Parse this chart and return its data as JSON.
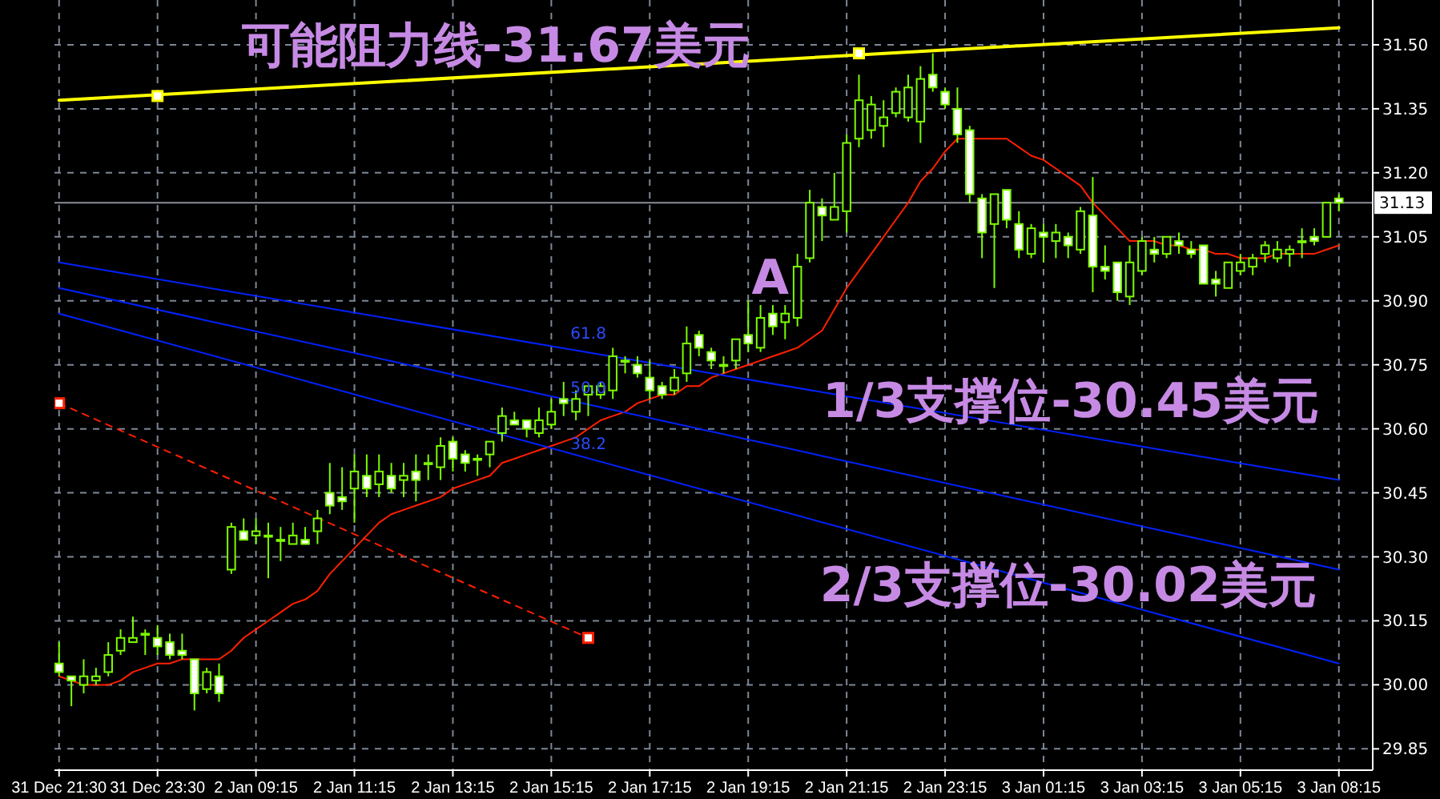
{
  "chart_data": {
    "type": "candlestick",
    "color": "#7cfc00",
    "grid": true,
    "categories": [
      "31 Dec 21:30",
      null,
      null,
      null,
      null,
      null,
      null,
      null,
      "31 Dec 23:30",
      null,
      null,
      null,
      null,
      null,
      null,
      null,
      "2 Jan 09:15",
      null,
      null,
      null,
      null,
      null,
      null,
      null,
      "2 Jan 11:15",
      null,
      null,
      null,
      null,
      null,
      null,
      null,
      "2 Jan 13:15",
      null,
      null,
      null,
      null,
      null,
      null,
      null,
      "2 Jan 15:15",
      null,
      null,
      null,
      null,
      null,
      null,
      null,
      "2 Jan 17:15",
      null,
      null,
      null,
      null,
      null,
      null,
      null,
      "2 Jan 19:15",
      null,
      null,
      null,
      null,
      null,
      null,
      null,
      "2 Jan 21:15",
      null,
      null,
      null,
      null,
      null,
      null,
      null,
      "2 Jan 23:15",
      null,
      null,
      null,
      null,
      null,
      null,
      null,
      "3 Jan 01:15",
      null,
      null,
      null,
      null,
      null,
      null,
      null,
      "3 Jan 03:15",
      null,
      null,
      null,
      null,
      null,
      null,
      null,
      "3 Jan 05:15",
      null,
      null,
      null,
      null,
      null,
      null,
      null,
      "3 Jan 08:15"
    ],
    "ylim": [
      29.8,
      31.605
    ],
    "yticks": [
      29.85,
      {
        "value": 30,
        "label": "30.00"
      },
      30.15,
      {
        "value": 30.3,
        "label": "30.30"
      },
      30.45,
      {
        "value": 30.6,
        "label": "30.60"
      },
      30.75,
      {
        "value": 30.9,
        "label": "30.90"
      },
      31.05,
      {
        "value": 31.2,
        "label": "31.20"
      },
      31.35,
      {
        "value": 31.5,
        "label": "31.50"
      }
    ],
    "ohlc": [
      [
        30.05,
        30.1,
        30.02,
        30.03
      ],
      [
        30.02,
        30.02,
        29.95,
        30.01
      ],
      [
        30.0,
        30.06,
        29.98,
        30.02
      ],
      [
        30.01,
        30.04,
        30.0,
        30.02
      ],
      [
        30.03,
        30.1,
        30.02,
        30.07
      ],
      [
        30.08,
        30.13,
        30.07,
        30.11
      ],
      [
        30.1,
        30.16,
        30.1,
        30.11
      ],
      [
        30.12,
        30.13,
        30.07,
        30.12
      ],
      [
        30.11,
        30.14,
        30.07,
        30.09
      ],
      [
        30.1,
        30.12,
        30.06,
        30.07
      ],
      [
        30.08,
        30.12,
        30.06,
        30.07
      ],
      [
        30.06,
        30.06,
        29.94,
        29.98
      ],
      [
        29.99,
        30.04,
        29.98,
        30.03
      ],
      [
        30.02,
        30.05,
        29.96,
        29.98
      ],
      [
        30.27,
        30.38,
        30.26,
        30.37
      ],
      [
        30.36,
        30.39,
        30.34,
        30.34
      ],
      [
        30.35,
        30.39,
        30.33,
        30.36
      ],
      [
        30.35,
        30.38,
        30.25,
        30.35
      ],
      [
        30.34,
        30.37,
        30.29,
        30.34
      ],
      [
        30.33,
        30.38,
        30.33,
        30.35
      ],
      [
        30.34,
        30.37,
        30.33,
        30.33
      ],
      [
        30.36,
        30.41,
        30.33,
        30.39
      ],
      [
        30.45,
        30.52,
        30.4,
        30.42
      ],
      [
        30.44,
        30.51,
        30.41,
        30.43
      ],
      [
        30.46,
        30.54,
        30.38,
        30.5
      ],
      [
        30.49,
        30.54,
        30.44,
        30.46
      ],
      [
        30.47,
        30.54,
        30.44,
        30.5
      ],
      [
        30.49,
        30.52,
        30.45,
        30.46
      ],
      [
        30.48,
        30.52,
        30.44,
        30.49
      ],
      [
        30.5,
        30.54,
        30.43,
        30.48
      ],
      [
        30.52,
        30.54,
        30.48,
        30.52
      ],
      [
        30.51,
        30.58,
        30.48,
        30.56
      ],
      [
        30.57,
        30.58,
        30.5,
        30.53
      ],
      [
        30.54,
        30.55,
        30.5,
        30.52
      ],
      [
        30.53,
        30.54,
        30.49,
        30.53
      ],
      [
        30.54,
        30.57,
        30.51,
        30.57
      ],
      [
        30.59,
        30.65,
        30.57,
        30.63
      ],
      [
        30.62,
        30.64,
        30.61,
        30.61
      ],
      [
        30.62,
        30.62,
        30.58,
        30.6
      ],
      [
        30.59,
        30.65,
        30.58,
        30.62
      ],
      [
        30.61,
        30.67,
        30.6,
        30.64
      ],
      [
        30.67,
        30.71,
        30.63,
        30.66
      ],
      [
        30.64,
        30.69,
        30.62,
        30.67
      ],
      [
        30.68,
        30.7,
        30.63,
        30.7
      ],
      [
        30.68,
        30.71,
        30.67,
        30.7
      ],
      [
        30.69,
        30.79,
        30.67,
        30.77
      ],
      [
        30.76,
        30.77,
        30.73,
        30.76
      ],
      [
        30.75,
        30.77,
        30.72,
        30.73
      ],
      [
        30.72,
        30.76,
        30.67,
        30.69
      ],
      [
        30.7,
        30.71,
        30.67,
        30.68
      ],
      [
        30.69,
        30.74,
        30.68,
        30.72
      ],
      [
        30.73,
        30.84,
        30.71,
        30.8
      ],
      [
        30.82,
        30.83,
        30.77,
        30.79
      ],
      [
        30.78,
        30.79,
        30.74,
        30.76
      ],
      [
        30.75,
        30.77,
        30.73,
        30.75
      ],
      [
        30.76,
        30.81,
        30.74,
        30.81
      ],
      [
        30.82,
        30.9,
        30.78,
        30.8
      ],
      [
        30.79,
        30.89,
        30.78,
        30.86
      ],
      [
        30.87,
        30.89,
        30.82,
        30.84
      ],
      [
        30.85,
        30.89,
        30.81,
        30.87
      ],
      [
        30.86,
        31.01,
        30.84,
        30.98
      ],
      [
        31.0,
        31.16,
        30.99,
        31.13
      ],
      [
        31.12,
        31.14,
        31.04,
        31.1
      ],
      [
        31.09,
        31.2,
        31.09,
        31.12
      ],
      [
        31.11,
        31.29,
        31.06,
        31.27
      ],
      [
        31.28,
        31.43,
        31.26,
        31.37
      ],
      [
        31.3,
        31.38,
        31.28,
        31.36
      ],
      [
        31.31,
        31.37,
        31.26,
        31.33
      ],
      [
        31.34,
        31.4,
        31.33,
        31.39
      ],
      [
        31.33,
        31.43,
        31.32,
        31.4
      ],
      [
        31.32,
        31.45,
        31.27,
        31.42
      ],
      [
        31.43,
        31.48,
        31.39,
        31.4
      ],
      [
        31.39,
        31.4,
        31.35,
        31.36
      ],
      [
        31.35,
        31.4,
        31.27,
        31.29
      ],
      [
        31.3,
        31.31,
        31.13,
        31.15
      ],
      [
        31.14,
        31.15,
        31.0,
        31.06
      ],
      [
        31.08,
        31.15,
        30.93,
        31.15
      ],
      [
        31.16,
        31.16,
        31.07,
        31.09
      ],
      [
        31.08,
        31.11,
        31.0,
        31.02
      ],
      [
        31.01,
        31.08,
        31.0,
        31.07
      ],
      [
        31.06,
        31.08,
        30.99,
        31.05
      ],
      [
        31.04,
        31.08,
        31.0,
        31.06
      ],
      [
        31.05,
        31.06,
        31.0,
        31.03
      ],
      [
        31.02,
        31.12,
        31.01,
        31.11
      ],
      [
        31.1,
        31.19,
        30.92,
        30.98
      ],
      [
        30.98,
        31.03,
        30.95,
        30.97
      ],
      [
        30.99,
        30.99,
        30.9,
        30.92
      ],
      [
        30.91,
        31.03,
        30.89,
        30.99
      ],
      [
        30.97,
        31.05,
        30.96,
        31.04
      ],
      [
        31.02,
        31.05,
        30.99,
        31.01
      ],
      [
        31.01,
        31.05,
        31.0,
        31.05
      ],
      [
        31.04,
        31.06,
        31.01,
        31.03
      ],
      [
        31.02,
        31.04,
        31.0,
        31.01
      ],
      [
        31.03,
        31.03,
        30.94,
        30.94
      ],
      [
        30.95,
        30.97,
        30.91,
        30.94
      ],
      [
        30.93,
        30.99,
        30.93,
        30.99
      ],
      [
        30.97,
        31.01,
        30.96,
        30.99
      ],
      [
        30.98,
        31.01,
        30.96,
        31.0
      ],
      [
        31.01,
        31.04,
        30.99,
        31.03
      ],
      [
        31.0,
        31.04,
        30.99,
        31.02
      ],
      [
        31.01,
        31.03,
        30.98,
        31.02
      ],
      [
        31.04,
        31.07,
        31.0,
        31.04
      ],
      [
        31.05,
        31.07,
        31.03,
        31.04
      ],
      [
        31.05,
        31.13,
        31.05,
        31.13
      ],
      [
        31.14,
        31.15,
        31.11,
        31.13
      ]
    ],
    "series": [
      {
        "type": "line",
        "color": "#ff2000",
        "values": [
          30.02,
          30.01,
          30.0,
          30.0,
          30.0,
          30.01,
          30.03,
          30.04,
          30.05,
          30.05,
          30.06,
          30.06,
          30.06,
          30.06,
          30.08,
          30.11,
          30.13,
          30.15,
          30.17,
          30.19,
          30.2,
          30.22,
          30.26,
          30.29,
          30.32,
          30.35,
          30.38,
          30.4,
          30.41,
          30.42,
          30.43,
          30.44,
          30.46,
          30.47,
          30.48,
          30.49,
          30.52,
          30.53,
          30.54,
          30.55,
          30.56,
          30.57,
          30.58,
          30.6,
          30.62,
          30.63,
          30.64,
          30.66,
          30.67,
          30.68,
          30.68,
          30.7,
          30.7,
          30.72,
          30.73,
          30.74,
          30.75,
          30.76,
          30.77,
          30.78,
          30.79,
          30.81,
          30.83,
          30.88,
          30.93,
          30.97,
          31.01,
          31.05,
          31.09,
          31.13,
          31.18,
          31.21,
          31.25,
          31.28,
          31.28,
          31.28,
          31.28,
          31.28,
          31.26,
          31.24,
          31.23,
          31.21,
          31.19,
          31.17,
          31.13,
          31.1,
          31.07,
          31.04,
          31.04,
          31.04,
          31.03,
          31.03,
          31.02,
          31.02,
          31.01,
          31.01,
          31.0,
          31.0,
          31.0,
          31.01,
          31.01,
          31.01,
          31.01,
          31.02,
          31.03
        ]
      },
      {
        "type": "line",
        "color": "#ffff00",
        "values": [
          31.37,
          null,
          null,
          null,
          null,
          null,
          null,
          null,
          null,
          null,
          null,
          null,
          null,
          null,
          null,
          null,
          null,
          null,
          null,
          null,
          null,
          null,
          null,
          null,
          null,
          null,
          null,
          null,
          null,
          null,
          null,
          null,
          null,
          null,
          null,
          null,
          null,
          null,
          null,
          null,
          null,
          null,
          null,
          null,
          null,
          null,
          null,
          null,
          null,
          null,
          null,
          null,
          null,
          null,
          null,
          null,
          null,
          null,
          null,
          null,
          null,
          null,
          null,
          null,
          null,
          null,
          null,
          null,
          null,
          null,
          null,
          null,
          null,
          null,
          null,
          null,
          null,
          null,
          null,
          null,
          null,
          null,
          null,
          null,
          null,
          null,
          null,
          null,
          null,
          null,
          null,
          null,
          null,
          null,
          null,
          null,
          null,
          null,
          null,
          null,
          null,
          null,
          null,
          null,
          31.54
        ]
      },
      {
        "type": "scatter",
        "color": "#ffff00",
        "marker": "square",
        "values": [
          null,
          null,
          null,
          null,
          null,
          null,
          null,
          null,
          31.38,
          null,
          null,
          null,
          null,
          null,
          null,
          null,
          null,
          null,
          null,
          null,
          null,
          null,
          null,
          null,
          null,
          null,
          null,
          null,
          null,
          null,
          null,
          null,
          null,
          null,
          null,
          null,
          null,
          null,
          null,
          null,
          null,
          null,
          null,
          null,
          null,
          null,
          null,
          null,
          null,
          null,
          null,
          null,
          null,
          null,
          null,
          null,
          null,
          null,
          null,
          null,
          null,
          null,
          null,
          null,
          null,
          31.48,
          null,
          null,
          null,
          null,
          null,
          null,
          null,
          null,
          null,
          null,
          null,
          null,
          null,
          null,
          null,
          null,
          null,
          null,
          null,
          null,
          null,
          null,
          null,
          null,
          null,
          null,
          null,
          null,
          null,
          null,
          null,
          null,
          null,
          null,
          null,
          null,
          null,
          null,
          null
        ]
      },
      {
        "type": "line",
        "color": "#ff2000",
        "line_style": "dashed",
        "marker": "square",
        "values": [
          30.66,
          null,
          null,
          null,
          null,
          null,
          null,
          null,
          null,
          null,
          null,
          null,
          null,
          null,
          null,
          null,
          null,
          null,
          null,
          null,
          null,
          null,
          null,
          null,
          null,
          null,
          null,
          null,
          null,
          null,
          null,
          null,
          null,
          null,
          null,
          null,
          null,
          null,
          null,
          null,
          null,
          null,
          null,
          30.11,
          null,
          null,
          null,
          null,
          null,
          null,
          null,
          null,
          null,
          null,
          null,
          null,
          null,
          null,
          null,
          null,
          null,
          null,
          null,
          null,
          null,
          null,
          null,
          null,
          null,
          null,
          null,
          null,
          null,
          null,
          null,
          null,
          null,
          null,
          null,
          null,
          null,
          null,
          null,
          null,
          null,
          null,
          null,
          null,
          null,
          null,
          null,
          null,
          null,
          null,
          null,
          null,
          null,
          null,
          null,
          null,
          null,
          null,
          null,
          null,
          null
        ]
      },
      {
        "type": "line",
        "color": "#0022ff",
        "values": [
          30.99,
          null,
          null,
          null,
          null,
          null,
          null,
          null,
          null,
          null,
          null,
          null,
          null,
          null,
          null,
          null,
          null,
          null,
          null,
          null,
          null,
          null,
          null,
          null,
          null,
          null,
          null,
          null,
          null,
          null,
          null,
          null,
          null,
          null,
          null,
          null,
          null,
          null,
          null,
          null,
          null,
          null,
          null,
          null,
          null,
          null,
          null,
          null,
          null,
          null,
          null,
          null,
          null,
          null,
          null,
          null,
          null,
          null,
          null,
          null,
          null,
          null,
          null,
          null,
          null,
          null,
          null,
          null,
          null,
          null,
          null,
          null,
          null,
          null,
          null,
          null,
          null,
          null,
          null,
          null,
          null,
          null,
          null,
          null,
          null,
          null,
          null,
          null,
          null,
          null,
          null,
          null,
          null,
          null,
          null,
          null,
          null,
          null,
          null,
          null,
          null,
          null,
          null,
          null,
          30.48
        ]
      },
      {
        "type": "line",
        "color": "#0022ff",
        "values": [
          30.93,
          null,
          null,
          null,
          null,
          null,
          null,
          null,
          null,
          null,
          null,
          null,
          null,
          null,
          null,
          null,
          null,
          null,
          null,
          null,
          null,
          null,
          null,
          null,
          null,
          null,
          null,
          null,
          null,
          null,
          null,
          null,
          null,
          null,
          null,
          null,
          null,
          null,
          null,
          null,
          null,
          null,
          null,
          null,
          null,
          null,
          null,
          null,
          null,
          null,
          null,
          null,
          null,
          null,
          null,
          null,
          null,
          null,
          null,
          null,
          null,
          null,
          null,
          null,
          null,
          null,
          null,
          null,
          null,
          null,
          null,
          null,
          null,
          null,
          null,
          null,
          null,
          null,
          null,
          null,
          null,
          null,
          null,
          null,
          null,
          null,
          null,
          null,
          null,
          null,
          null,
          null,
          null,
          null,
          null,
          null,
          null,
          null,
          null,
          null,
          null,
          null,
          null,
          null,
          30.27
        ]
      },
      {
        "type": "line",
        "color": "#0022ff",
        "values": [
          30.87,
          null,
          null,
          null,
          null,
          null,
          null,
          null,
          null,
          null,
          null,
          null,
          null,
          null,
          null,
          null,
          null,
          null,
          null,
          null,
          null,
          null,
          null,
          null,
          null,
          null,
          null,
          null,
          null,
          null,
          null,
          null,
          null,
          null,
          null,
          null,
          null,
          null,
          null,
          null,
          null,
          null,
          null,
          null,
          null,
          null,
          null,
          null,
          null,
          null,
          null,
          null,
          null,
          null,
          null,
          null,
          null,
          null,
          null,
          null,
          null,
          null,
          null,
          null,
          null,
          null,
          null,
          null,
          null,
          null,
          null,
          null,
          null,
          null,
          null,
          null,
          null,
          null,
          null,
          null,
          null,
          null,
          null,
          null,
          null,
          null,
          null,
          null,
          null,
          null,
          null,
          null,
          null,
          null,
          null,
          null,
          null,
          null,
          null,
          null,
          null,
          null,
          null,
          null,
          30.05
        ]
      }
    ],
    "ref_lines": [
      {
        "axis": "y",
        "value": 31.13,
        "label": "31.13",
        "color": "#8a8f98"
      }
    ],
    "annotations": [
      "可能阻力线-31.67美元",
      "A",
      "1/3支撑位-30.45美元",
      "2/3支撑位-30.02美元",
      "61.8",
      "50.0",
      "38.2"
    ]
  }
}
